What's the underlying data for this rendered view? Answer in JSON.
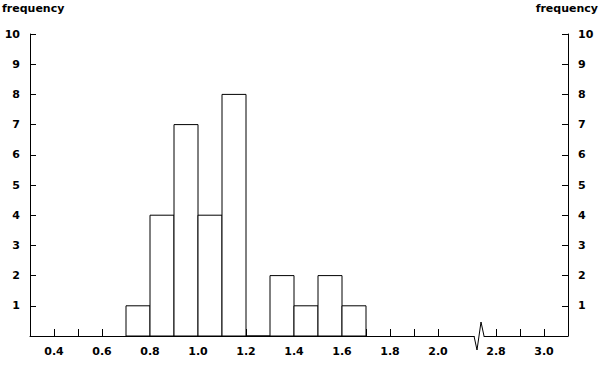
{
  "chart_data": {
    "type": "histogram",
    "ylabel": "frequency",
    "y2label": "frequency",
    "bins": [
      0.7,
      0.8,
      0.9,
      1.0,
      1.1,
      1.2,
      1.3,
      1.4,
      1.5,
      1.6,
      1.7
    ],
    "values": [
      1,
      4,
      7,
      4,
      8,
      0,
      2,
      1,
      2,
      1
    ],
    "color": "#ffffff",
    "xlim": [
      0.3,
      3.1
    ],
    "xbreak": [
      2.15,
      2.75
    ],
    "xticks": [
      0.4,
      0.6,
      0.8,
      {
        "value": 1,
        "label": "1.0"
      },
      1.2,
      1.4,
      1.6,
      1.8,
      {
        "value": 2,
        "label": "2.0"
      },
      2.8,
      {
        "value": 3,
        "label": "3.0"
      }
    ],
    "ylim": [
      0,
      10
    ],
    "yticks": [
      1,
      2,
      3,
      4,
      5,
      6,
      7,
      8,
      9,
      10
    ],
    "y2lim": [
      0,
      10
    ],
    "y2ticks": [
      1,
      2,
      3,
      4,
      5,
      6,
      7,
      8,
      9,
      10
    ],
    "grid": false
  }
}
